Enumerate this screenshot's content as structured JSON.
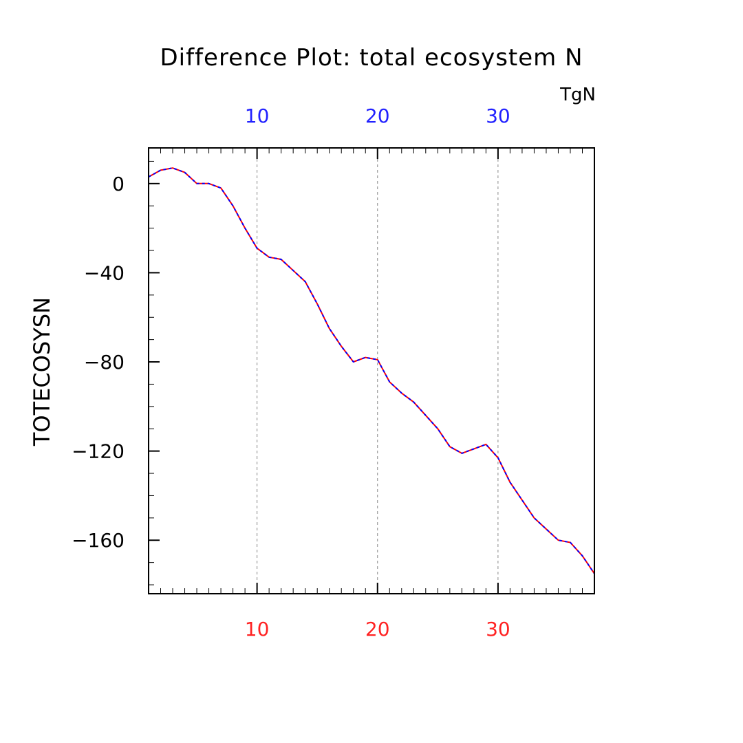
{
  "chart_data": {
    "type": "line",
    "title": "Difference Plot: total ecosystem N",
    "units": "TgN",
    "ylabel": "TOTECOSYSN",
    "xlim": [
      1,
      38
    ],
    "ylim": [
      -184,
      16
    ],
    "x_ticks_top": [
      10,
      20,
      30
    ],
    "x_ticks_bottom": [
      10,
      20,
      30
    ],
    "y_ticks": [
      0,
      -40,
      -80,
      -120,
      -160
    ],
    "grid": "vertical dashed lines at major x ticks",
    "colors": {
      "top_axis_labels": "#2222ff",
      "bottom_axis_labels": "#ff2222",
      "series_primary": "#ff0000",
      "series_secondary": "#0000ff",
      "grid": "#888888",
      "axes": "#000000"
    },
    "series": [
      {
        "x": [
          1,
          2,
          3,
          4,
          5,
          6,
          7,
          8,
          9,
          10,
          11,
          12,
          13,
          14,
          15,
          16,
          17,
          18,
          19,
          20,
          21,
          22,
          23,
          24,
          25,
          26,
          27,
          28,
          29,
          30,
          31,
          32,
          33,
          34,
          35,
          36,
          37,
          38
        ],
        "values": [
          3,
          6,
          7,
          5,
          0,
          0,
          -2,
          -10,
          -20,
          -29,
          -33,
          -34,
          -39,
          -44,
          -54,
          -65,
          -73,
          -80,
          -78,
          -79,
          -89,
          -94,
          -98,
          -104,
          -110,
          -118,
          -121,
          -119,
          -117,
          -123,
          -134,
          -142,
          -150,
          -155,
          -160,
          -161,
          -167,
          -175
        ]
      }
    ]
  }
}
